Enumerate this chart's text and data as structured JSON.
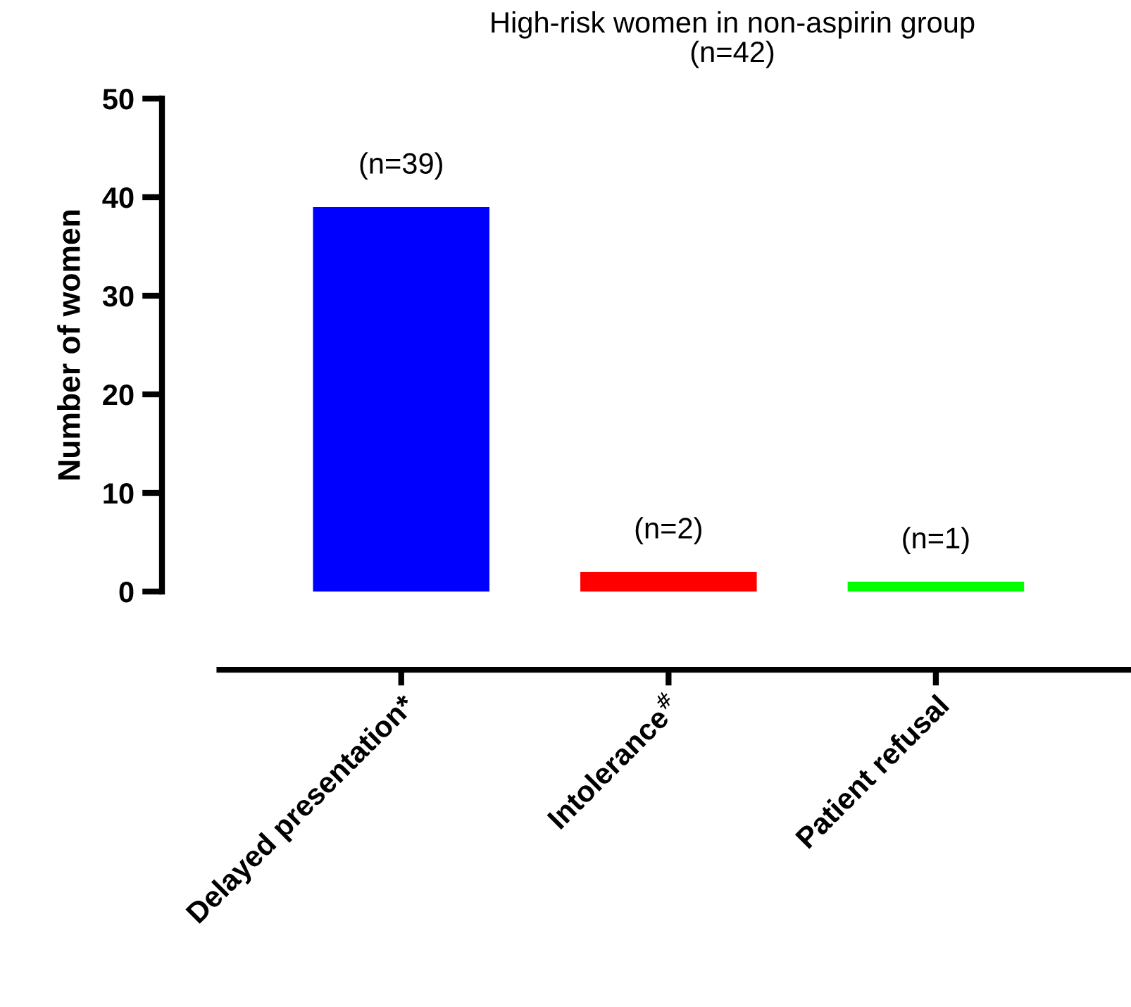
{
  "chart_data": {
    "type": "bar",
    "title": "High-risk women in non-aspirin group\n(n=42)",
    "ylabel": "Number of women",
    "categories": [
      "Delayed presentation*",
      "Intolerance$^{#}$",
      "Patient refusal"
    ],
    "values": [
      39,
      2,
      1
    ],
    "colors": [
      "#0000ff",
      "#ff0000",
      "#00ff00"
    ],
    "value_labels": [
      "(n=39)",
      "(n=2)",
      "(n=1)"
    ],
    "ylim": [
      0,
      50
    ],
    "yticks": [
      0,
      10,
      20,
      30,
      40,
      50
    ],
    "grid": false,
    "legend": false
  }
}
